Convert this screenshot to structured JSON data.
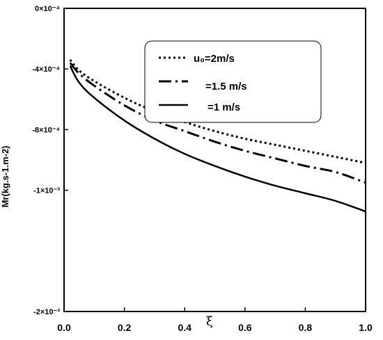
{
  "chart_data": {
    "type": "line",
    "title": "",
    "xlabel": "ξ",
    "ylabel": "Mr(kg.s-1.m-2)",
    "xlim": [
      0,
      1
    ],
    "ylim": [
      -0.002,
      0
    ],
    "x_ticks": [
      {
        "value": 0.0,
        "label": "0.0"
      },
      {
        "value": 0.2,
        "label": "0.2"
      },
      {
        "value": 0.4,
        "label": "0.4"
      },
      {
        "value": 0.6,
        "label": "0.6"
      },
      {
        "value": 0.8,
        "label": "0.8"
      },
      {
        "value": 1.0,
        "label": "1.0"
      }
    ],
    "y_ticks": [
      {
        "value": 0,
        "label": "0×10⁻⁴"
      },
      {
        "value": -0.0004,
        "label": "-4×10⁻⁴"
      },
      {
        "value": -0.0008,
        "label": "-8×10⁻⁴"
      },
      {
        "value": -0.0012,
        "label": "-1×10⁻³"
      },
      {
        "value": -0.002,
        "label": "-2×10⁻³"
      }
    ],
    "grid": false,
    "legend_position": "top-right",
    "series": [
      {
        "name": "u₀=2m/s",
        "style": "dotted",
        "x": [
          0.02,
          0.05,
          0.1,
          0.2,
          0.3,
          0.4,
          0.5,
          0.6,
          0.7,
          0.8,
          0.9,
          1.0
        ],
        "y": [
          -0.00034,
          -0.00041,
          -0.00048,
          -0.00059,
          -0.00068,
          -0.00075,
          -0.00081,
          -0.00086,
          -0.0009,
          -0.00094,
          -0.00098,
          -0.00102
        ]
      },
      {
        "name": "=1.5 m/s",
        "style": "dash-dot",
        "x": [
          0.02,
          0.05,
          0.1,
          0.2,
          0.3,
          0.4,
          0.5,
          0.6,
          0.7,
          0.8,
          0.9,
          1.0
        ],
        "y": [
          -0.00036,
          -0.00043,
          -0.00051,
          -0.00064,
          -0.00074,
          -0.00081,
          -0.00088,
          -0.00094,
          -0.00099,
          -0.00104,
          -0.00108,
          -0.00115
        ]
      },
      {
        "name": "=1 m/s",
        "style": "solid",
        "x": [
          0.02,
          0.05,
          0.1,
          0.2,
          0.3,
          0.4,
          0.5,
          0.6,
          0.7,
          0.8,
          0.9,
          1.0
        ],
        "y": [
          -0.00038,
          -0.00049,
          -0.00059,
          -0.00074,
          -0.00086,
          -0.00096,
          -0.00104,
          -0.00111,
          -0.00117,
          -0.00122,
          -0.00127,
          -0.00134
        ]
      }
    ]
  }
}
